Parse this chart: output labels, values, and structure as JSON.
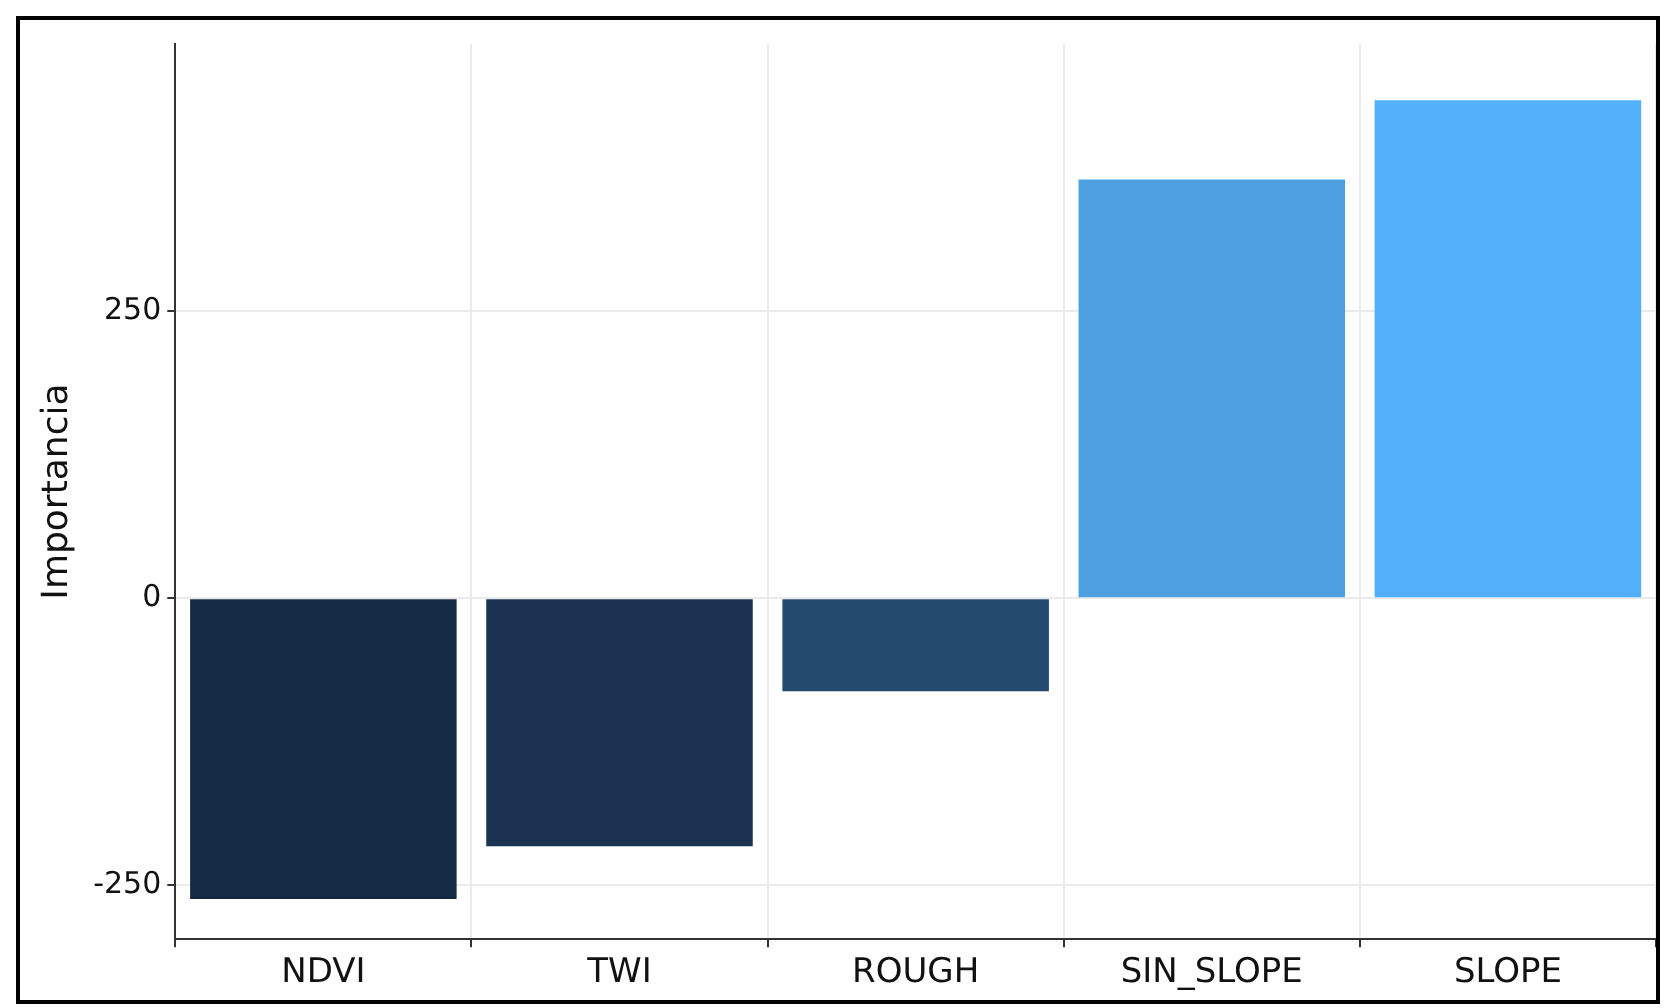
{
  "chart_data": {
    "type": "bar",
    "ylabel": "Importancia",
    "categories": [
      "NDVI",
      "TWI",
      "ROUGH",
      "SIN_SLOPE",
      "SLOPE"
    ],
    "values": [
      -262,
      -216,
      -81,
      365,
      434
    ],
    "colors": [
      "#152a43",
      "#1b3350",
      "#244a6e",
      "#4ea1e1",
      "#53aff7"
    ],
    "ylim": [
      -297,
      483
    ],
    "yticks": [
      -250,
      0,
      250
    ],
    "grid": true,
    "legend": false
  }
}
